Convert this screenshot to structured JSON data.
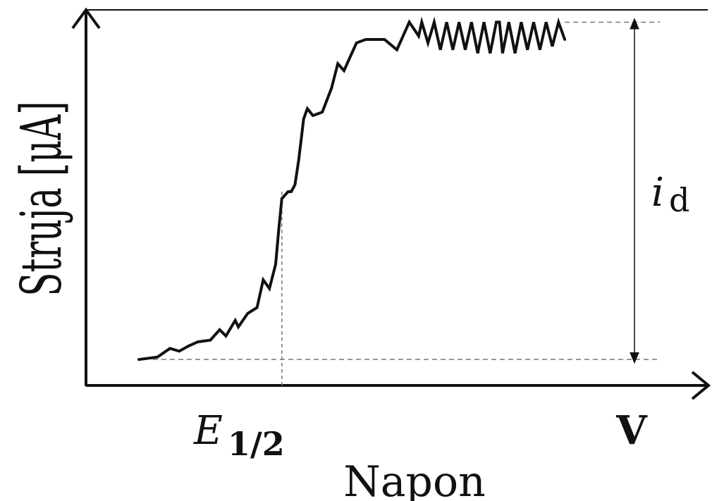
{
  "chart_data": {
    "type": "line",
    "title": "",
    "xlabel": "Napon",
    "ylabel": "Struja [μA]",
    "x_unit_label": "V",
    "x_tick_label": {
      "main": "E",
      "sub": "1/2"
    },
    "annotation_label": {
      "main": "i",
      "sub": "d"
    },
    "xlim": [
      0,
      1
    ],
    "ylim": [
      0,
      1
    ],
    "grid": false,
    "series": [
      {
        "x": [
          0.085,
          0.115,
          0.135,
          0.15,
          0.165,
          0.18,
          0.2,
          0.215,
          0.225,
          0.24,
          0.245,
          0.26,
          0.275,
          0.285,
          0.295,
          0.305,
          0.31,
          0.315,
          0.325,
          0.33,
          0.336,
          0.342,
          0.346,
          0.35,
          0.356,
          0.365,
          0.38,
          0.395,
          0.405,
          0.415,
          0.425,
          0.435,
          0.45,
          0.465,
          0.48,
          0.5,
          0.52,
          0.535,
          0.54,
          0.55,
          0.56,
          0.57,
          0.58,
          0.59,
          0.6,
          0.61,
          0.62,
          0.63,
          0.64,
          0.65,
          0.66,
          0.665,
          0.67,
          0.68,
          0.69,
          0.7,
          0.71,
          0.72,
          0.73,
          0.74,
          0.75,
          0.76,
          0.77
        ],
        "y": [
          0.075,
          0.082,
          0.107,
          0.099,
          0.114,
          0.126,
          0.131,
          0.161,
          0.143,
          0.188,
          0.169,
          0.208,
          0.225,
          0.305,
          0.28,
          0.35,
          0.45,
          0.54,
          0.56,
          0.56,
          0.58,
          0.65,
          0.71,
          0.77,
          0.8,
          0.78,
          0.79,
          0.86,
          0.93,
          0.91,
          0.95,
          0.99,
          1.0,
          1.0,
          1.0,
          0.97,
          1.05,
          1.01,
          1.05,
          0.99,
          1.05,
          0.97,
          1.05,
          0.97,
          1.05,
          0.97,
          1.05,
          0.96,
          1.05,
          0.96,
          1.05,
          1.05,
          0.96,
          1.05,
          0.96,
          1.05,
          0.97,
          1.05,
          0.97,
          1.05,
          0.98,
          1.05,
          1.0
        ]
      }
    ],
    "reference_lines": {
      "lower_level": 0.075,
      "upper_level": 1.05,
      "half_wave_x": 0.315
    }
  }
}
